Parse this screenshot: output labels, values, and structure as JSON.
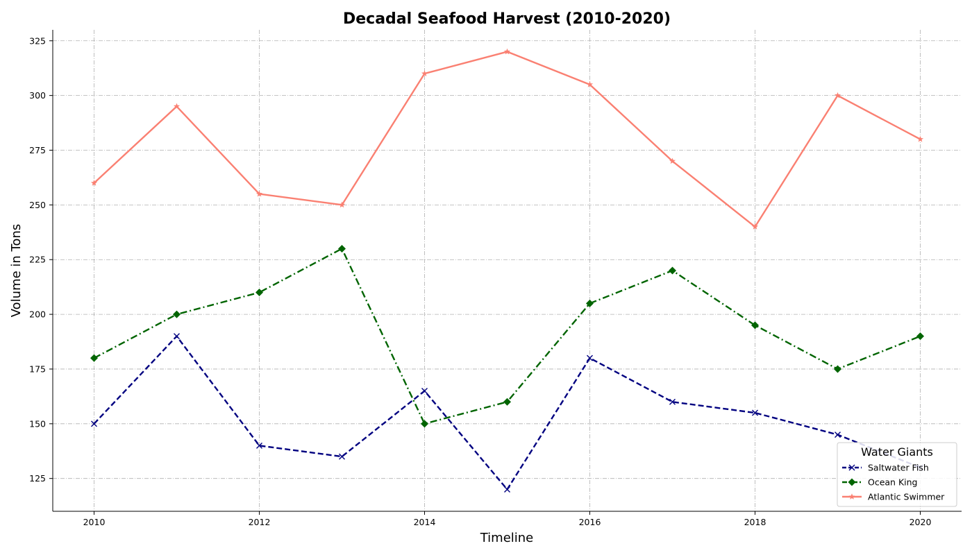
{
  "chart_data": {
    "type": "line",
    "title": "Decadal Seafood Harvest (2010-2020)",
    "xlabel": "Timeline",
    "ylabel": "Volume in Tons",
    "x": [
      2010,
      2011,
      2012,
      2013,
      2014,
      2015,
      2016,
      2017,
      2018,
      2019,
      2020
    ],
    "x_ticks": [
      "2010",
      "2012",
      "2014",
      "2016",
      "2018",
      "2020"
    ],
    "y_ticks": [
      "125",
      "150",
      "175",
      "200",
      "225",
      "250",
      "275",
      "300",
      "325"
    ],
    "xlim": [
      2009.5,
      2020.5
    ],
    "ylim": [
      110,
      330
    ],
    "grid": true,
    "legend": {
      "title": "Water Giants",
      "placement": "bottom-right"
    },
    "series": [
      {
        "name": "Saltwater Fish",
        "color": "#000080",
        "dash": "dashed",
        "marker": "x",
        "values": [
          150,
          190,
          140,
          135,
          165,
          120,
          180,
          160,
          155,
          145,
          130
        ]
      },
      {
        "name": "Ocean King",
        "color": "#006400",
        "dash": "dashdot",
        "marker": "diamond",
        "values": [
          180,
          200,
          210,
          230,
          150,
          160,
          205,
          220,
          195,
          175,
          190
        ]
      },
      {
        "name": "Atlantic Swimmer",
        "color": "#FA8072",
        "dash": "solid",
        "marker": "star",
        "values": [
          260,
          295,
          255,
          250,
          310,
          320,
          305,
          270,
          240,
          300,
          280
        ]
      }
    ]
  }
}
